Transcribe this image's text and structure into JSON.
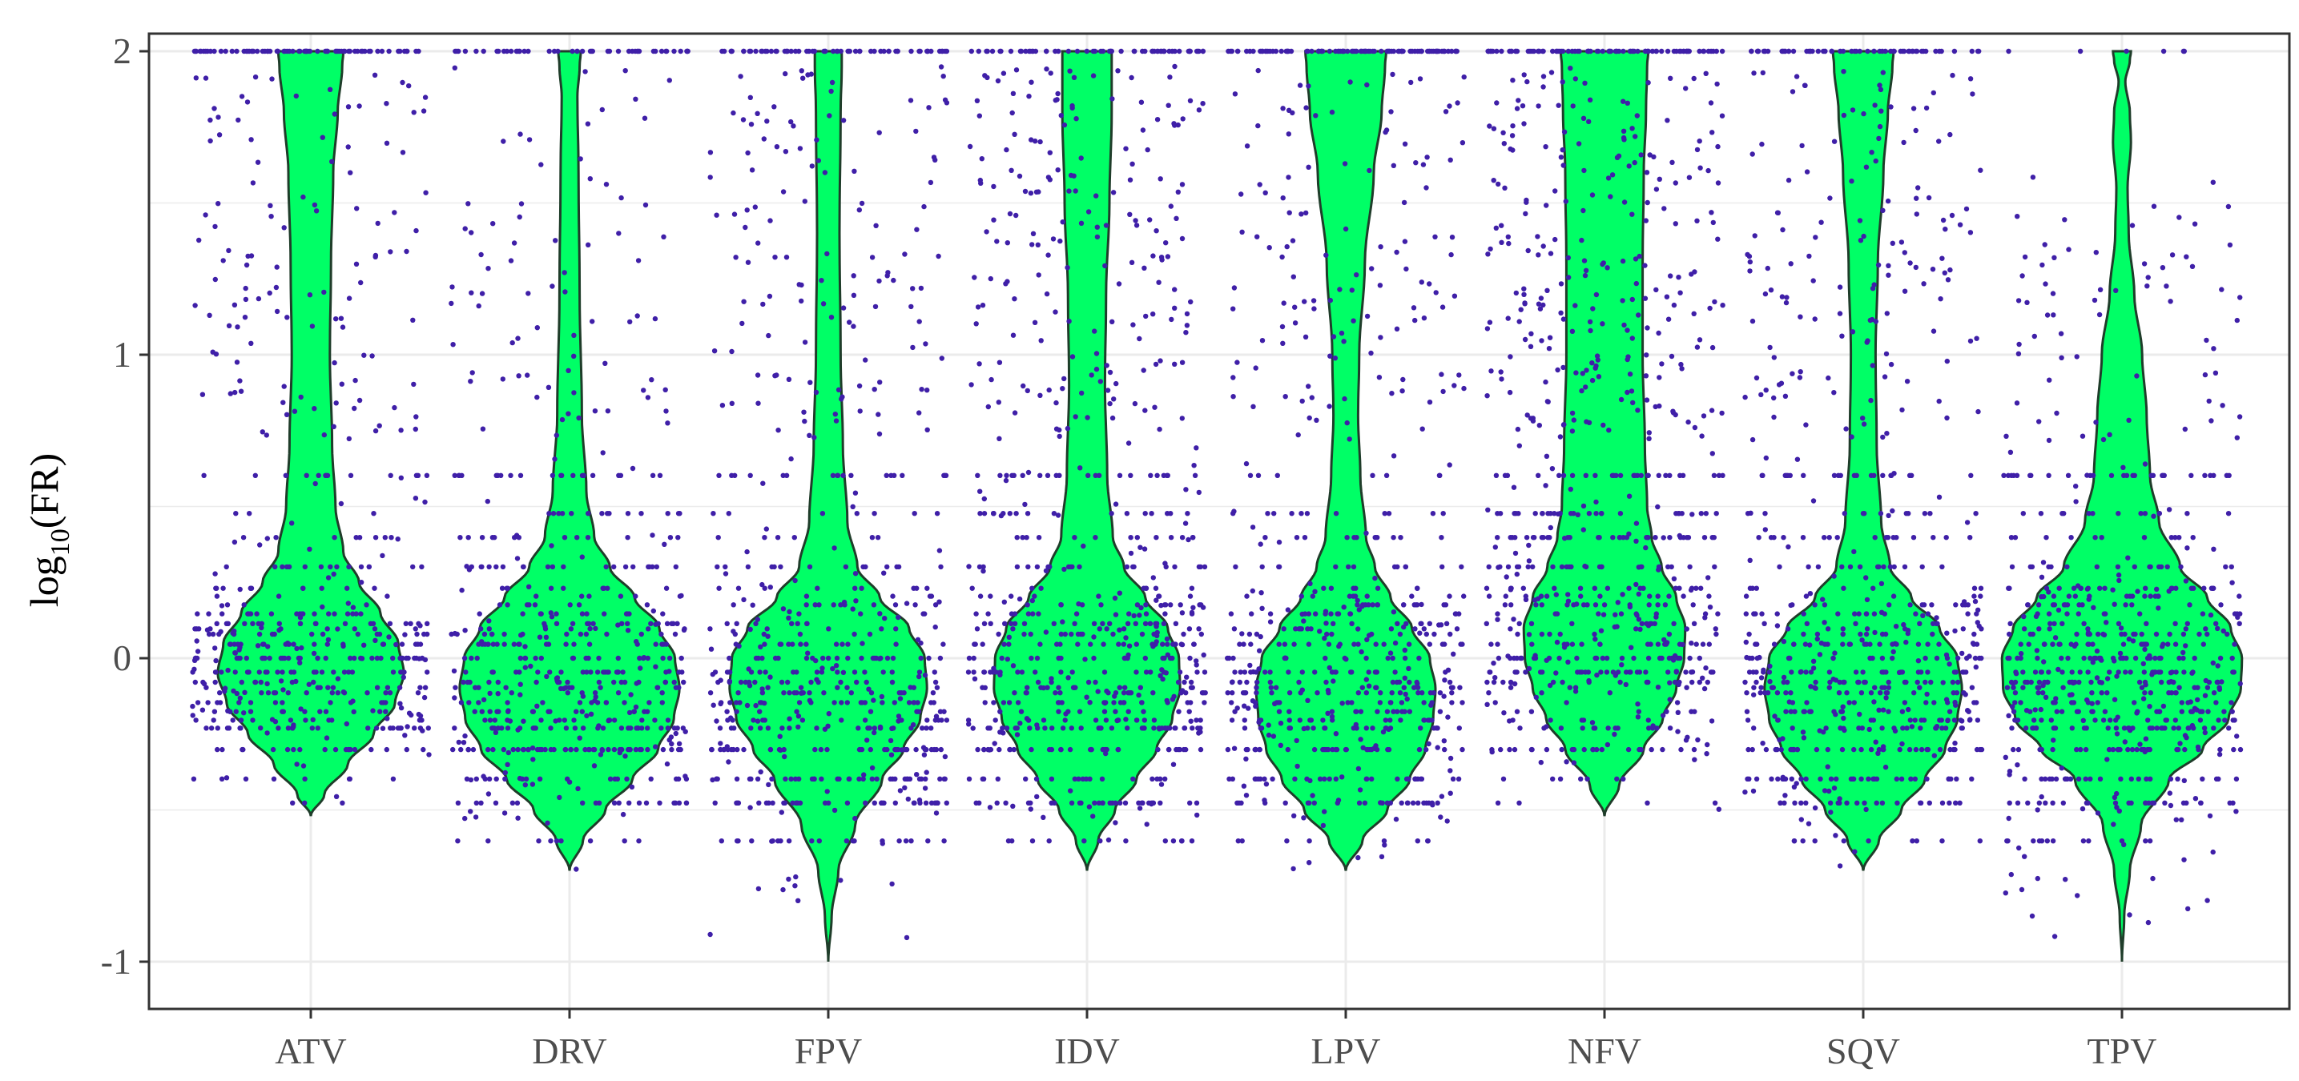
{
  "chart_data": {
    "type": "violin",
    "title": "",
    "xlabel": "",
    "ylabel": "log10(FR)",
    "ylabel_parts": {
      "base": "log",
      "subscript": "10",
      "rest": "(FR)"
    },
    "ylim": [
      -1.15,
      2.0
    ],
    "yticks": [
      -1,
      0,
      1,
      2
    ],
    "ytick_labels": [
      "-1",
      "0",
      "1",
      "2"
    ],
    "grid": true,
    "categories": [
      "ATV",
      "DRV",
      "FPV",
      "IDV",
      "LPV",
      "NFV",
      "SQV",
      "TPV"
    ],
    "violins": [
      {
        "name": "ATV",
        "min": -0.52,
        "max": 2.0,
        "profile": [
          [
            -0.52,
            0.0
          ],
          [
            -0.45,
            0.12
          ],
          [
            -0.35,
            0.33
          ],
          [
            -0.25,
            0.56
          ],
          [
            -0.15,
            0.75
          ],
          [
            -0.05,
            0.83
          ],
          [
            0.05,
            0.78
          ],
          [
            0.15,
            0.62
          ],
          [
            0.25,
            0.43
          ],
          [
            0.35,
            0.29
          ],
          [
            0.5,
            0.22
          ],
          [
            0.7,
            0.19
          ],
          [
            1.0,
            0.17
          ],
          [
            1.3,
            0.18
          ],
          [
            1.6,
            0.2
          ],
          [
            1.8,
            0.24
          ],
          [
            1.95,
            0.28
          ],
          [
            2.0,
            0.29
          ]
        ]
      },
      {
        "name": "DRV",
        "min": -0.7,
        "max": 2.0,
        "profile": [
          [
            -0.7,
            0.0
          ],
          [
            -0.6,
            0.12
          ],
          [
            -0.5,
            0.32
          ],
          [
            -0.4,
            0.56
          ],
          [
            -0.3,
            0.79
          ],
          [
            -0.2,
            0.93
          ],
          [
            -0.1,
            0.98
          ],
          [
            0.0,
            0.94
          ],
          [
            0.1,
            0.8
          ],
          [
            0.2,
            0.58
          ],
          [
            0.3,
            0.36
          ],
          [
            0.4,
            0.22
          ],
          [
            0.55,
            0.15
          ],
          [
            0.8,
            0.11
          ],
          [
            1.2,
            0.09
          ],
          [
            1.6,
            0.08
          ],
          [
            1.85,
            0.07
          ],
          [
            1.95,
            0.09
          ],
          [
            2.0,
            0.1
          ]
        ]
      },
      {
        "name": "FPV",
        "min": -1.0,
        "max": 2.0,
        "profile": [
          [
            -1.0,
            0.0
          ],
          [
            -0.85,
            0.03
          ],
          [
            -0.7,
            0.09
          ],
          [
            -0.55,
            0.24
          ],
          [
            -0.4,
            0.48
          ],
          [
            -0.3,
            0.67
          ],
          [
            -0.2,
            0.82
          ],
          [
            -0.1,
            0.88
          ],
          [
            0.0,
            0.86
          ],
          [
            0.1,
            0.72
          ],
          [
            0.2,
            0.46
          ],
          [
            0.3,
            0.26
          ],
          [
            0.45,
            0.17
          ],
          [
            0.7,
            0.13
          ],
          [
            1.0,
            0.11
          ],
          [
            1.4,
            0.1
          ],
          [
            1.8,
            0.11
          ],
          [
            1.95,
            0.12
          ],
          [
            2.0,
            0.12
          ]
        ]
      },
      {
        "name": "IDV",
        "min": -0.7,
        "max": 2.0,
        "profile": [
          [
            -0.7,
            0.0
          ],
          [
            -0.6,
            0.1
          ],
          [
            -0.5,
            0.25
          ],
          [
            -0.4,
            0.44
          ],
          [
            -0.3,
            0.62
          ],
          [
            -0.2,
            0.76
          ],
          [
            -0.1,
            0.83
          ],
          [
            0.0,
            0.82
          ],
          [
            0.1,
            0.72
          ],
          [
            0.2,
            0.52
          ],
          [
            0.3,
            0.33
          ],
          [
            0.4,
            0.23
          ],
          [
            0.6,
            0.18
          ],
          [
            0.9,
            0.16
          ],
          [
            1.2,
            0.17
          ],
          [
            1.5,
            0.2
          ],
          [
            1.8,
            0.22
          ],
          [
            1.95,
            0.22
          ],
          [
            2.0,
            0.22
          ]
        ]
      },
      {
        "name": "LPV",
        "min": -0.7,
        "max": 2.0,
        "profile": [
          [
            -0.7,
            0.0
          ],
          [
            -0.6,
            0.15
          ],
          [
            -0.5,
            0.37
          ],
          [
            -0.4,
            0.57
          ],
          [
            -0.3,
            0.71
          ],
          [
            -0.2,
            0.78
          ],
          [
            -0.1,
            0.8
          ],
          [
            0.0,
            0.75
          ],
          [
            0.1,
            0.59
          ],
          [
            0.2,
            0.4
          ],
          [
            0.3,
            0.26
          ],
          [
            0.4,
            0.18
          ],
          [
            0.6,
            0.13
          ],
          [
            0.8,
            0.11
          ],
          [
            1.0,
            0.12
          ],
          [
            1.3,
            0.17
          ],
          [
            1.6,
            0.25
          ],
          [
            1.8,
            0.32
          ],
          [
            1.95,
            0.35
          ],
          [
            2.0,
            0.36
          ]
        ]
      },
      {
        "name": "NFV",
        "min": -0.52,
        "max": 2.0,
        "profile": [
          [
            -0.52,
            0.0
          ],
          [
            -0.42,
            0.13
          ],
          [
            -0.3,
            0.35
          ],
          [
            -0.2,
            0.52
          ],
          [
            -0.1,
            0.64
          ],
          [
            0.0,
            0.71
          ],
          [
            0.1,
            0.72
          ],
          [
            0.2,
            0.64
          ],
          [
            0.3,
            0.51
          ],
          [
            0.4,
            0.42
          ],
          [
            0.5,
            0.38
          ],
          [
            0.7,
            0.36
          ],
          [
            1.0,
            0.34
          ],
          [
            1.3,
            0.34
          ],
          [
            1.6,
            0.35
          ],
          [
            1.8,
            0.37
          ],
          [
            1.95,
            0.38
          ],
          [
            2.0,
            0.39
          ]
        ]
      },
      {
        "name": "SQV",
        "min": -0.7,
        "max": 2.0,
        "profile": [
          [
            -0.7,
            0.0
          ],
          [
            -0.6,
            0.14
          ],
          [
            -0.5,
            0.34
          ],
          [
            -0.4,
            0.55
          ],
          [
            -0.3,
            0.73
          ],
          [
            -0.2,
            0.84
          ],
          [
            -0.1,
            0.88
          ],
          [
            0.0,
            0.84
          ],
          [
            0.1,
            0.68
          ],
          [
            0.2,
            0.43
          ],
          [
            0.3,
            0.24
          ],
          [
            0.45,
            0.16
          ],
          [
            0.7,
            0.12
          ],
          [
            1.0,
            0.11
          ],
          [
            1.3,
            0.13
          ],
          [
            1.6,
            0.18
          ],
          [
            1.8,
            0.22
          ],
          [
            1.95,
            0.26
          ],
          [
            2.0,
            0.27
          ]
        ]
      },
      {
        "name": "TPV",
        "min": -1.0,
        "max": 2.0,
        "profile": [
          [
            -1.0,
            0.0
          ],
          [
            -0.85,
            0.02
          ],
          [
            -0.7,
            0.07
          ],
          [
            -0.55,
            0.17
          ],
          [
            -0.4,
            0.42
          ],
          [
            -0.3,
            0.72
          ],
          [
            -0.2,
            0.95
          ],
          [
            -0.1,
            1.06
          ],
          [
            0.0,
            1.07
          ],
          [
            0.1,
            0.97
          ],
          [
            0.2,
            0.76
          ],
          [
            0.3,
            0.52
          ],
          [
            0.45,
            0.33
          ],
          [
            0.6,
            0.25
          ],
          [
            0.8,
            0.22
          ],
          [
            1.0,
            0.18
          ],
          [
            1.2,
            0.11
          ],
          [
            1.4,
            0.06
          ],
          [
            1.55,
            0.05
          ],
          [
            1.7,
            0.08
          ],
          [
            1.8,
            0.07
          ],
          [
            1.9,
            0.03
          ],
          [
            1.97,
            0.07
          ],
          [
            2.0,
            0.08
          ]
        ]
      }
    ],
    "jitter_points": {
      "description": "individual observations drawn as small dots jittered horizontally around each violin",
      "groups": [
        {
          "name": "ATV",
          "n": 620,
          "bands": [
            [
              -0.52,
              -0.4,
              4
            ],
            [
              -0.4,
              -0.25,
              36
            ],
            [
              -0.25,
              -0.05,
              140
            ],
            [
              -0.05,
              0.15,
              170
            ],
            [
              0.15,
              0.4,
              55
            ],
            [
              0.4,
              1.0,
              55
            ],
            [
              1.0,
              1.95,
              85
            ],
            [
              2.0,
              2.0,
              75
            ]
          ]
        },
        {
          "name": "DRV",
          "n": 640,
          "bands": [
            [
              -0.7,
              -0.55,
              8
            ],
            [
              -0.55,
              -0.35,
              60
            ],
            [
              -0.35,
              -0.1,
              175
            ],
            [
              -0.1,
              0.15,
              165
            ],
            [
              0.15,
              0.45,
              75
            ],
            [
              0.45,
              1.0,
              60
            ],
            [
              1.0,
              1.95,
              50
            ],
            [
              2.0,
              2.0,
              47
            ]
          ]
        },
        {
          "name": "FPV",
          "n": 690,
          "bands": [
            [
              -1.0,
              -0.8,
              2
            ],
            [
              -0.8,
              -0.55,
              26
            ],
            [
              -0.55,
              -0.25,
              150
            ],
            [
              -0.25,
              0.05,
              200
            ],
            [
              0.05,
              0.3,
              80
            ],
            [
              0.3,
              1.0,
              75
            ],
            [
              1.0,
              1.95,
              95
            ],
            [
              2.0,
              2.0,
              62
            ]
          ]
        },
        {
          "name": "IDV",
          "n": 790,
          "bands": [
            [
              -0.7,
              -0.55,
              10
            ],
            [
              -0.55,
              -0.3,
              80
            ],
            [
              -0.3,
              -0.05,
              180
            ],
            [
              -0.05,
              0.2,
              170
            ],
            [
              0.2,
              0.5,
              70
            ],
            [
              0.5,
              1.0,
              80
            ],
            [
              1.0,
              1.95,
              140
            ],
            [
              2.0,
              2.0,
              60
            ]
          ]
        },
        {
          "name": "LPV",
          "n": 730,
          "bands": [
            [
              -0.7,
              -0.55,
              10
            ],
            [
              -0.55,
              -0.3,
              95
            ],
            [
              -0.3,
              -0.05,
              185
            ],
            [
              -0.05,
              0.2,
              150
            ],
            [
              0.2,
              0.5,
              50
            ],
            [
              0.5,
              1.0,
              45
            ],
            [
              1.0,
              1.95,
              95
            ],
            [
              2.0,
              2.0,
              100
            ]
          ]
        },
        {
          "name": "NFV",
          "n": 800,
          "bands": [
            [
              -0.52,
              -0.35,
              12
            ],
            [
              -0.35,
              -0.1,
              80
            ],
            [
              -0.1,
              0.2,
              200
            ],
            [
              0.2,
              0.5,
              130
            ],
            [
              0.5,
              1.0,
              110
            ],
            [
              1.0,
              1.95,
              180
            ],
            [
              2.0,
              2.0,
              88
            ]
          ]
        },
        {
          "name": "SQV",
          "n": 740,
          "bands": [
            [
              -0.7,
              -0.55,
              12
            ],
            [
              -0.55,
              -0.3,
              90
            ],
            [
              -0.3,
              -0.05,
              180
            ],
            [
              -0.05,
              0.2,
              165
            ],
            [
              0.2,
              0.5,
              60
            ],
            [
              0.5,
              1.0,
              60
            ],
            [
              1.0,
              1.95,
              110
            ],
            [
              2.0,
              2.0,
              63
            ]
          ]
        },
        {
          "name": "TPV",
          "n": 700,
          "bands": [
            [
              -1.0,
              -0.85,
              2
            ],
            [
              -0.85,
              -0.55,
              22
            ],
            [
              -0.55,
              -0.3,
              95
            ],
            [
              -0.3,
              0.05,
              290
            ],
            [
              0.05,
              0.3,
              150
            ],
            [
              0.3,
              0.8,
              80
            ],
            [
              0.8,
              1.6,
              55
            ],
            [
              2.0,
              2.0,
              6
            ]
          ]
        }
      ]
    },
    "colors": {
      "violin_fill": "#00ff66",
      "violin_stroke": "#1f3d2a",
      "points": "#3f1fa8",
      "grid": "#ebebeb",
      "panel_border": "#333333",
      "tick_text": "#4d4d4d"
    }
  }
}
